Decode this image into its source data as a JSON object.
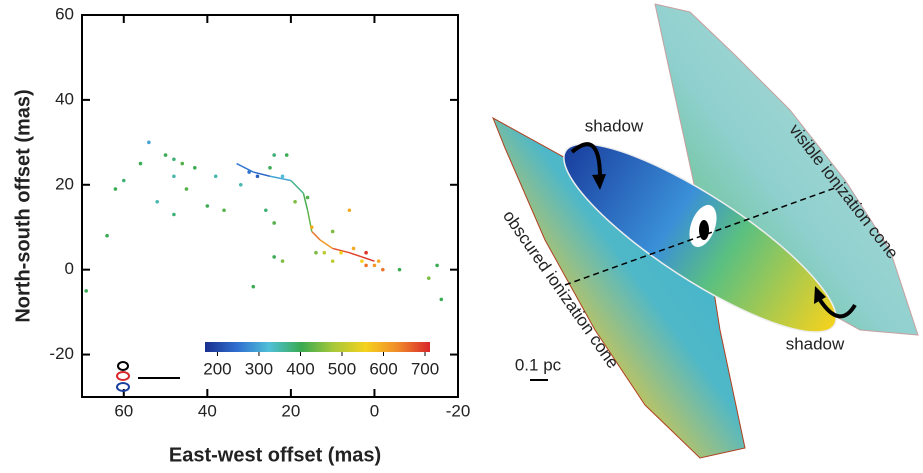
{
  "chart_data": {
    "type": "scatter",
    "x_label": "East-west offset (mas)",
    "y_label": "North-south offset (mas)",
    "xlim": [
      70,
      -20
    ],
    "ylim": [
      -30,
      60
    ],
    "xticks": [
      60,
      40,
      20,
      0,
      -20
    ],
    "yticks": [
      -20,
      0,
      20,
      40,
      60
    ],
    "x": [
      54,
      50,
      48,
      46,
      56,
      60,
      48,
      43,
      38,
      45,
      62,
      52,
      48,
      40,
      36,
      64,
      26,
      24,
      22,
      24,
      14,
      12,
      8,
      15,
      19,
      29,
      10,
      3,
      0,
      -1,
      -6,
      -13,
      -16,
      -15,
      69,
      25,
      30,
      28,
      32,
      22,
      16,
      5,
      2,
      21,
      24,
      6,
      10,
      2,
      -2
    ],
    "y": [
      30,
      27,
      26,
      25,
      25,
      21,
      22,
      24,
      22,
      19,
      19,
      16,
      13,
      15,
      14,
      8,
      14,
      11,
      2,
      3,
      4,
      4,
      4,
      10,
      16,
      -4,
      2,
      2,
      1,
      2,
      0,
      -2,
      -7,
      1,
      -5,
      24,
      23,
      22,
      20,
      22,
      17,
      5,
      1,
      27,
      27,
      14,
      9,
      4,
      0
    ],
    "velocities": [
      300,
      400,
      380,
      420,
      400,
      380,
      350,
      400,
      350,
      420,
      400,
      350,
      380,
      400,
      420,
      400,
      380,
      420,
      450,
      400,
      450,
      500,
      550,
      600,
      450,
      400,
      500,
      560,
      620,
      600,
      400,
      450,
      400,
      400,
      400,
      400,
      250,
      230,
      350,
      320,
      420,
      600,
      650,
      400,
      380,
      600,
      450,
      700,
      650
    ],
    "track": {
      "x": [
        33,
        29,
        25,
        20,
        17,
        16,
        15,
        13,
        10,
        6,
        3,
        0
      ],
      "y": [
        25,
        23,
        22,
        21,
        18,
        14,
        9,
        7,
        5,
        4,
        3,
        2
      ],
      "velocities": [
        260,
        240,
        300,
        370,
        410,
        430,
        650,
        620,
        680,
        690,
        700,
        650
      ]
    },
    "colormap": [
      "#1a2f8f",
      "#2f6fd0",
      "#4fc0d8",
      "#3aaa50",
      "#a8c83a",
      "#f5d21e",
      "#f08a2a",
      "#d9262a"
    ],
    "clim": [
      170,
      712
    ],
    "colorbar_ticks": [
      200,
      300,
      400,
      500,
      600,
      700
    ]
  },
  "diagram": {
    "labels": [
      "shadow",
      "shadow",
      "visible ionization cone",
      "obscured ionization cone",
      "0.1 pc"
    ]
  }
}
